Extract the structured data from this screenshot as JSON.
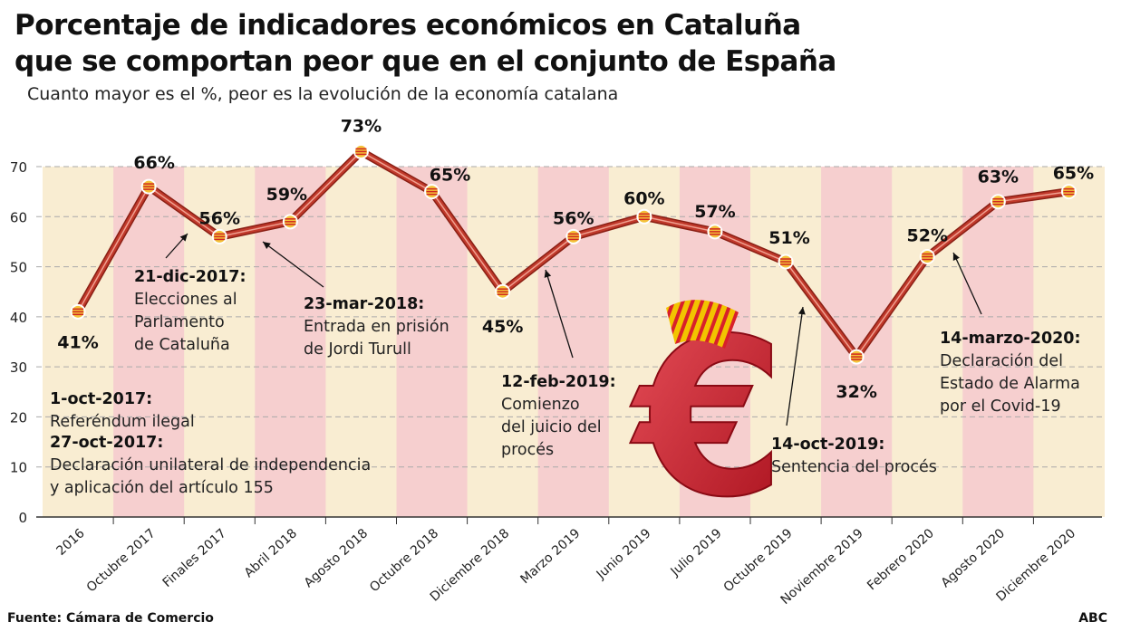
{
  "header": {
    "title_line1": "Porcentaje de indicadores económicos en Cataluña",
    "title_line2": "que se comportan peor que en el conjunto de España",
    "subtitle": "Cuanto mayor es el %, peor es la evolución de la economía catalana"
  },
  "chart_data": {
    "type": "line",
    "title": "Porcentaje de indicadores económicos en Cataluña que se comportan peor que en el conjunto de España",
    "subtitle": "Cuanto mayor es el %, peor es la evolución de la economía catalana",
    "xlabel": "",
    "ylabel": "",
    "ylim": [
      0,
      70
    ],
    "yticks": [
      0,
      10,
      20,
      30,
      40,
      50,
      60,
      70
    ],
    "grid": "horizontal dashed",
    "categories": [
      "2016",
      "Octubre 2017",
      "Finales 2017",
      "Abril 2018",
      "Agosto 2018",
      "Octubre 2018",
      "Diciembre 2018",
      "Marzo 2019",
      "Junio 2019",
      "Julio 2019",
      "Octubre 2019",
      "Noviembre 2019",
      "Febrero 2020",
      "Agosto 2020",
      "Diciembre 2020"
    ],
    "values": [
      41,
      66,
      56,
      59,
      73,
      65,
      45,
      56,
      60,
      57,
      51,
      32,
      52,
      63,
      65
    ],
    "data_labels": [
      "41%",
      "66%",
      "56%",
      "59%",
      "73%",
      "65%",
      "45%",
      "56%",
      "60%",
      "57%",
      "51%",
      "32%",
      "52%",
      "63%",
      "65%"
    ],
    "colors": {
      "line": "#c0392b",
      "band_a": "#f9edd2",
      "band_b": "#f6cfcf"
    },
    "annotations": [
      {
        "lines_bold": [
          "1-oct-2017:"
        ],
        "lines": [
          "Referéndum ilegal"
        ]
      },
      {
        "lines_bold": [
          "27-oct-2017:"
        ],
        "lines": [
          "Declaración unilateral de independencia",
          "y aplicación del artículo 155"
        ]
      },
      {
        "lines_bold": [
          "21-dic-2017:"
        ],
        "lines": [
          "Elecciones al",
          "Parlamento",
          "de Cataluña"
        ]
      },
      {
        "lines_bold": [
          "23-mar-2018:"
        ],
        "lines": [
          "Entrada en prisión",
          "de Jordi Turull"
        ]
      },
      {
        "lines_bold": [
          "12-feb-2019:"
        ],
        "lines": [
          "Comienzo",
          "del juicio del",
          "procés"
        ]
      },
      {
        "lines_bold": [
          "14-oct-2019:"
        ],
        "lines": [
          "Sentencia del procés"
        ]
      },
      {
        "lines_bold": [
          "14-marzo-2020:"
        ],
        "lines": [
          "Declaración del",
          "Estado de Alarma",
          "por el Covid-19"
        ]
      }
    ]
  },
  "footer": {
    "source": "Fuente: Cámara de Comercio",
    "brand": "ABC"
  },
  "icons": {
    "illustration": "euro-icon"
  }
}
